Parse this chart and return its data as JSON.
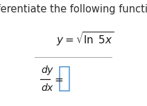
{
  "title": "Differentiate the following function.",
  "title_fontsize": 10.5,
  "title_color": "#2E2E2E",
  "background_color": "#ffffff",
  "line_color": "#aaaaaa",
  "box_color": "#5b9bd5",
  "text_color": "#1a1a1a"
}
